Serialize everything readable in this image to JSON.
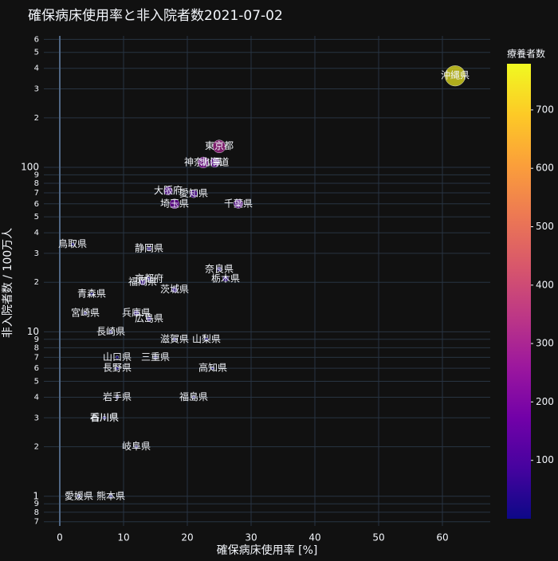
{
  "chart_data": {
    "type": "scatter",
    "title": "確保病床使用率と非入院者数2021-07-02",
    "x_label": "確保病床使用率 [%]",
    "y_label": "非入院者数 / 100万人",
    "categories": [
      "沖縄県",
      "東京都",
      "神奈川県",
      "北海道",
      "大阪府",
      "愛知県",
      "埼玉県",
      "千葉県",
      "鳥取県",
      "静岡県",
      "奈良県",
      "栃木県",
      "京都府",
      "福岡県",
      "茨城県",
      "青森県",
      "宮崎県",
      "兵庫県",
      "広島県",
      "長崎県",
      "滋賀県",
      "山梨県",
      "山口県",
      "三重県",
      "長野県",
      "高知県",
      "岩手県",
      "福島県",
      "香川県",
      "石川県",
      "岐阜県",
      "愛媛県",
      "熊本県"
    ],
    "x": [
      62,
      25,
      22.5,
      24.3,
      17,
      21,
      18,
      28,
      2,
      14,
      25,
      26,
      14,
      13,
      18,
      5,
      4,
      12,
      14,
      8,
      18,
      23,
      9,
      15,
      9,
      24,
      9,
      21,
      7,
      7,
      12,
      3,
      8
    ],
    "values": [
      360,
      134,
      107,
      107,
      72,
      69,
      60,
      60,
      34,
      32,
      24,
      21,
      21,
      20,
      18,
      17,
      13,
      13,
      12,
      10,
      9,
      9,
      7,
      7,
      6,
      6,
      4,
      4,
      3,
      3,
      2,
      1,
      1
    ],
    "color_values": [
      760,
      300,
      220,
      160,
      130,
      110,
      170,
      150,
      10,
      40,
      30,
      60,
      30,
      60,
      50,
      10,
      10,
      50,
      40,
      10,
      20,
      20,
      10,
      20,
      20,
      10,
      10,
      15,
      5,
      5,
      10,
      5,
      5
    ],
    "colorbar": {
      "title": "療養者数",
      "lim": [
        0,
        779
      ],
      "ticks": [
        100,
        200,
        300,
        400,
        500,
        600,
        700
      ]
    },
    "colorscale": [
      "#0d0887",
      "#46039f",
      "#7201a8",
      "#9c179e",
      "#bd3786",
      "#d8576b",
      "#ed7953",
      "#fb9f3a",
      "#fdca26",
      "#f0f921"
    ],
    "xlim": [
      -2.5,
      67.5
    ],
    "xticks": [
      0,
      10,
      20,
      30,
      40,
      50,
      60
    ],
    "ylog": true,
    "ylim": [
      0.66,
      630
    ],
    "yticks": [
      {
        "value": 600,
        "label": "6"
      },
      {
        "value": 500,
        "label": "5"
      },
      {
        "value": 400,
        "label": "4"
      },
      {
        "value": 300,
        "label": "3"
      },
      {
        "value": 200,
        "label": "2"
      },
      100,
      {
        "value": 90,
        "label": "9"
      },
      {
        "value": 80,
        "label": "8"
      },
      {
        "value": 70,
        "label": "7"
      },
      {
        "value": 60,
        "label": "6"
      },
      {
        "value": 50,
        "label": "5"
      },
      {
        "value": 40,
        "label": "4"
      },
      {
        "value": 30,
        "label": "3"
      },
      {
        "value": 20,
        "label": "2"
      },
      10,
      9,
      8,
      7,
      6,
      5,
      4,
      3,
      2,
      1,
      {
        "value": 0.9,
        "label": "9"
      },
      {
        "value": 0.8,
        "label": "8"
      },
      {
        "value": 0.7,
        "label": "7"
      }
    ],
    "grid": true
  }
}
